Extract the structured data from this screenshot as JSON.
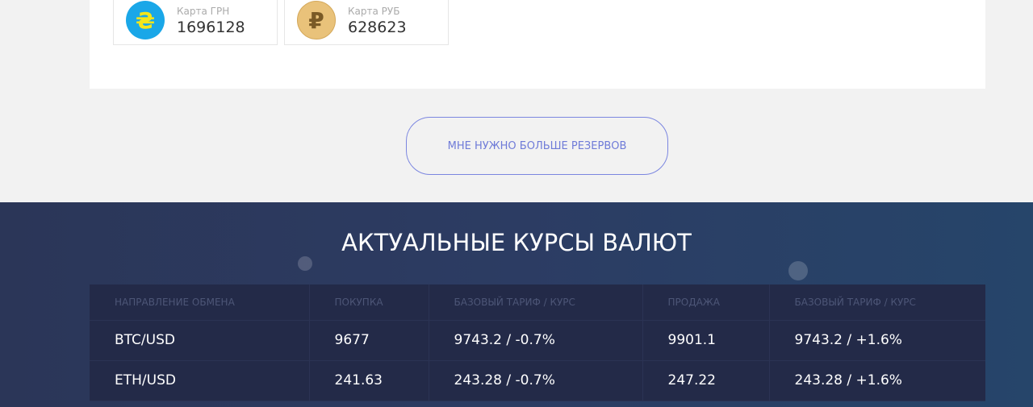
{
  "reserves": [
    {
      "label": "Карта ГРН",
      "value": "1696128",
      "icon": "hryvnia-icon",
      "symbol": "₴",
      "bg": "#1aa7e8",
      "fg": "#f5e61a"
    },
    {
      "label": "Карта РУБ",
      "value": "628623",
      "icon": "ruble-icon",
      "symbol": "₽",
      "bg": "#e9c27a",
      "fg": "#7a5a26"
    }
  ],
  "more_button": "МНЕ НУЖНО БОЛЬШЕ РЕЗЕРВОВ",
  "rates": {
    "title": "АКТУАЛЬНЫЕ КУРСЫ ВАЛЮТ",
    "headers": [
      "НАПРАВЛЕНИЕ ОБМЕНА",
      "ПОКУПКА",
      "БАЗОВЫЙ ТАРИФ / КУРС",
      "ПРОДАЖА",
      "БАЗОВЫЙ ТАРИФ / КУРС"
    ],
    "rows": [
      [
        "BTC/USD",
        "9677",
        "9743.2 / -0.7%",
        "9901.1",
        "9743.2 / +1.6%"
      ],
      [
        "ETH/USD",
        "241.63",
        "243.28 / -0.7%",
        "247.22",
        "243.28 / +1.6%"
      ]
    ]
  }
}
